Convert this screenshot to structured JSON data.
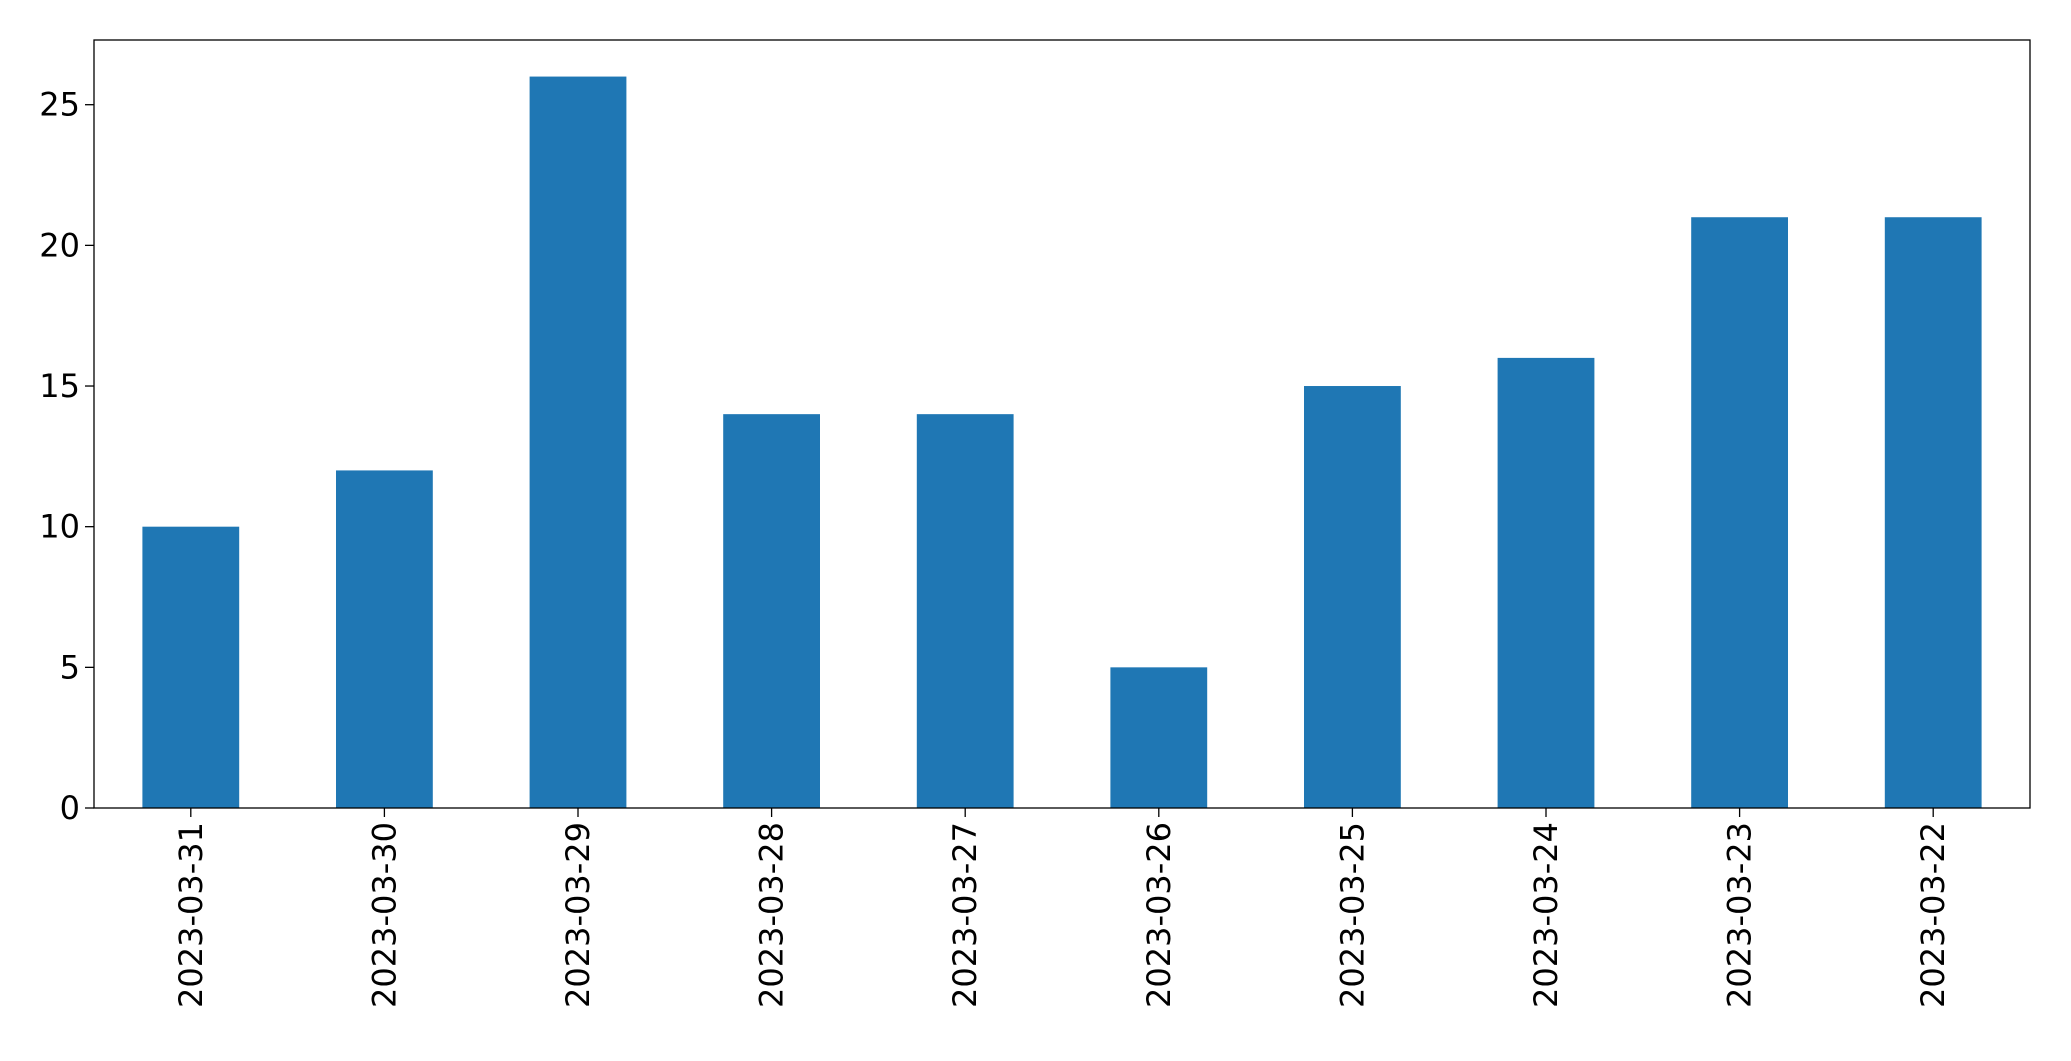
{
  "chart_data": {
    "type": "bar",
    "categories": [
      "2023-03-31",
      "2023-03-30",
      "2023-03-29",
      "2023-03-28",
      "2023-03-27",
      "2023-03-26",
      "2023-03-25",
      "2023-03-24",
      "2023-03-23",
      "2023-03-22"
    ],
    "values": [
      10,
      12,
      26,
      14,
      14,
      5,
      15,
      16,
      21,
      21
    ],
    "color": "#1f77b4",
    "ylim": [
      0,
      27.3
    ],
    "yticks": [
      0,
      5,
      10,
      15,
      20,
      25
    ],
    "grid": false
  }
}
